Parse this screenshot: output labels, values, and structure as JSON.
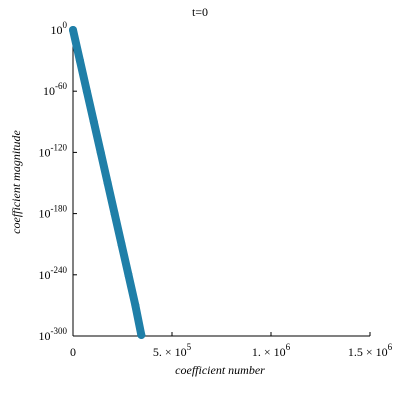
{
  "chart_data": {
    "type": "scatter",
    "title": "t=0",
    "xlabel": "coefficient number",
    "ylabel": "coefficient magnitude",
    "y_scale": "log10",
    "xlim": [
      0,
      1500000
    ],
    "ylim_log10": [
      -300,
      0
    ],
    "x_ticks": [
      {
        "value": 0,
        "mantissa": "0",
        "exponent": ""
      },
      {
        "value": 500000,
        "mantissa": "5. × 10",
        "exponent": "5"
      },
      {
        "value": 1000000,
        "mantissa": "1. × 10",
        "exponent": "6"
      },
      {
        "value": 1500000,
        "mantissa": "1.5 × 10",
        "exponent": "6"
      }
    ],
    "y_ticks": [
      {
        "value_log10": 0,
        "base": "10",
        "exponent": "0"
      },
      {
        "value_log10": -60,
        "base": "10",
        "exponent": "-60"
      },
      {
        "value_log10": -120,
        "base": "10",
        "exponent": "-120"
      },
      {
        "value_log10": -180,
        "base": "10",
        "exponent": "-180"
      },
      {
        "value_log10": -240,
        "base": "10",
        "exponent": "-240"
      },
      {
        "value_log10": -300,
        "base": "10",
        "exponent": "-300"
      }
    ],
    "series": [
      {
        "color": "#1f7fa8",
        "points": [
          {
            "x": 0,
            "y_log10": 0
          },
          {
            "x": 35000,
            "y_log10": -30
          },
          {
            "x": 70000,
            "y_log10": -60
          },
          {
            "x": 105000,
            "y_log10": -90
          },
          {
            "x": 140000,
            "y_log10": -120
          },
          {
            "x": 175000,
            "y_log10": -150
          },
          {
            "x": 210000,
            "y_log10": -180
          },
          {
            "x": 245000,
            "y_log10": -210
          },
          {
            "x": 280000,
            "y_log10": -240
          },
          {
            "x": 315000,
            "y_log10": -270
          },
          {
            "x": 345000,
            "y_log10": -299
          }
        ]
      }
    ],
    "grid": false
  }
}
